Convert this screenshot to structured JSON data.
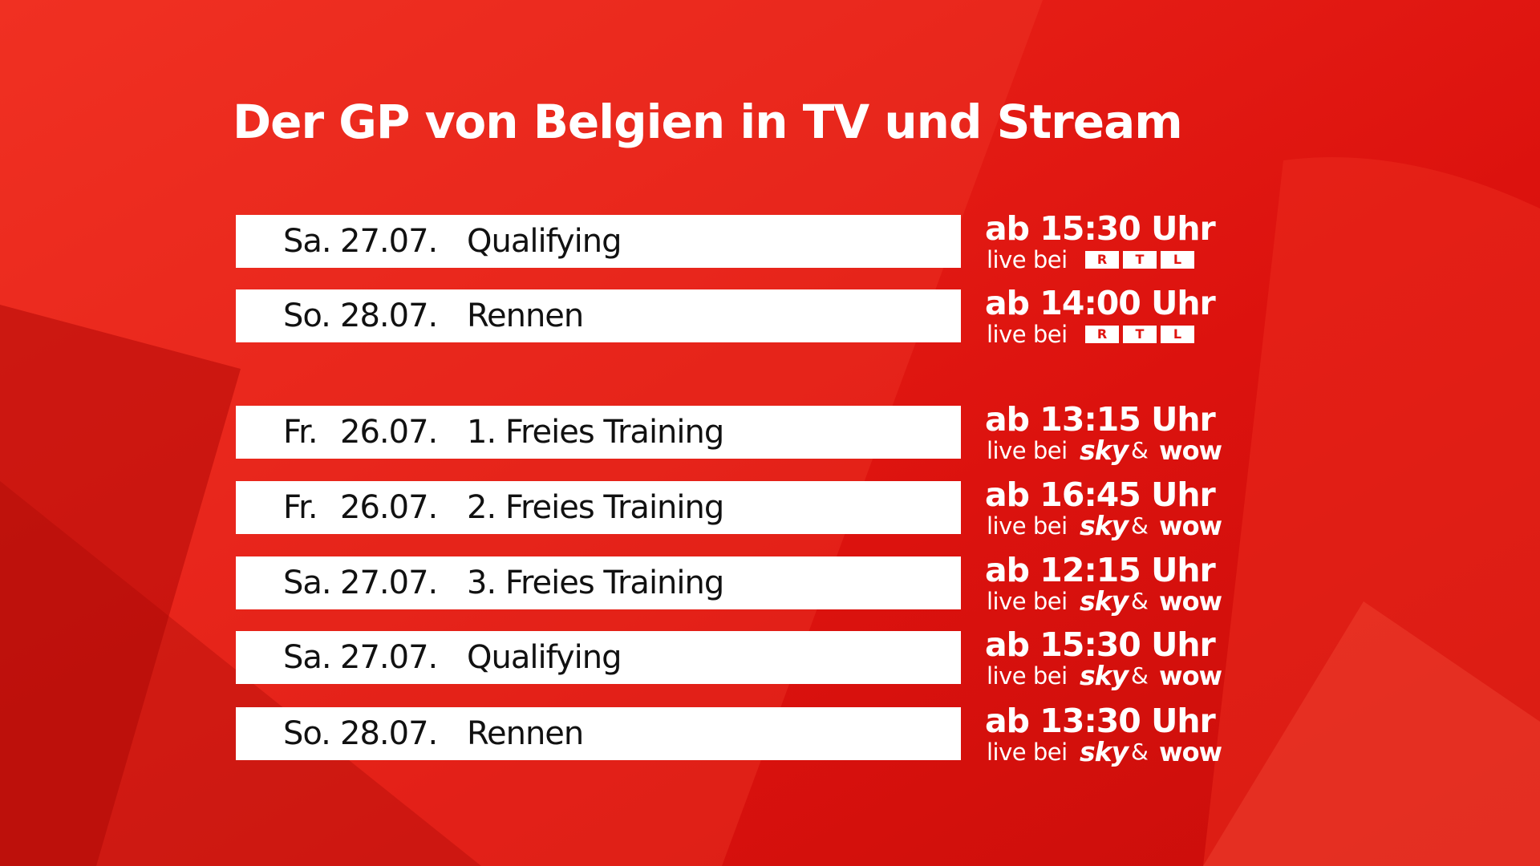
{
  "title": "Der GP von Belgien in TV und Stream",
  "groups": [
    {
      "rows": [
        {
          "day": "Sa.",
          "date": "27.07.",
          "event": "Qualifying",
          "time": "ab 15:30 Uhr",
          "live": "live bei",
          "rtl": [
            "R",
            "T",
            "L"
          ]
        },
        {
          "day": "So.",
          "date": "28.07.",
          "event": "Rennen",
          "time": "ab 14:00 Uhr",
          "live": "live bei",
          "rtl": [
            "R",
            "T",
            "L"
          ]
        }
      ]
    },
    {
      "rows": [
        {
          "day": "Fr.",
          "date": "26.07.",
          "event": "1. Freies Training",
          "time": "ab 13:15 Uhr",
          "live": "live bei",
          "sky": "sky",
          "and": "&",
          "wow": "wow"
        },
        {
          "day": "Fr.",
          "date": "26.07.",
          "event": "2. Freies Training",
          "time": "ab 16:45 Uhr",
          "live": "live bei",
          "sky": "sky",
          "and": "&",
          "wow": "wow"
        },
        {
          "day": "Sa.",
          "date": "27.07.",
          "event": "3. Freies Training",
          "time": "ab 12:15 Uhr",
          "live": "live bei",
          "sky": "sky",
          "and": "&",
          "wow": "wow"
        },
        {
          "day": "Sa.",
          "date": "27.07.",
          "event": "Qualifying",
          "time": "ab 15:30 Uhr",
          "live": "live bei",
          "sky": "sky",
          "and": "&",
          "wow": "wow"
        },
        {
          "day": "So.",
          "date": "28.07.",
          "event": "Rennen",
          "time": "ab 13:30 Uhr",
          "live": "live bei",
          "sky": "sky",
          "and": "&",
          "wow": "wow"
        }
      ]
    }
  ]
}
